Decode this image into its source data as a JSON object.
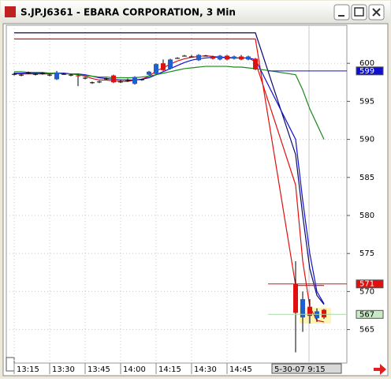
{
  "window": {
    "title": "S.JP.J6361 - EBARA CORPORATION, 3 Min"
  },
  "chart_data": {
    "type": "candlestick",
    "categories": [
      "13:15",
      null,
      null,
      null,
      null,
      "13:30",
      null,
      null,
      null,
      null,
      "13:45",
      null,
      null,
      null,
      null,
      "14:00",
      null,
      null,
      null,
      null,
      "14:15",
      null,
      null,
      null,
      null,
      "14:30",
      null,
      null,
      null,
      null,
      "14:45",
      null,
      null,
      null,
      null,
      "5-30-07  9:15",
      null,
      null,
      null,
      null
    ],
    "open": [
      598.6,
      598.5,
      598.8,
      598.6,
      598.7,
      598.5,
      597.9,
      598.6,
      598.5,
      598.4,
      598.1,
      597.5,
      597.6,
      598.0,
      598.4,
      597.6,
      597.8,
      597.3,
      597.9,
      598.5,
      598.6,
      600.0,
      599.3,
      600.7,
      601.0,
      600.9,
      600.4,
      601.0,
      600.9,
      600.5,
      601.0,
      600.6,
      600.9,
      600.5,
      600.6,
      571.0,
      566.6,
      568.0,
      566.5,
      567.6
    ],
    "high": [
      598.8,
      598.6,
      598.9,
      598.7,
      598.8,
      598.6,
      599.0,
      598.7,
      598.6,
      598.5,
      598.2,
      597.6,
      597.7,
      598.1,
      598.5,
      597.8,
      598.0,
      598.3,
      598.0,
      599.0,
      600.0,
      600.5,
      600.6,
      600.8,
      601.1,
      601.1,
      601.2,
      601.1,
      601.0,
      601.1,
      601.1,
      601.0,
      601.1,
      601.0,
      600.7,
      574.0,
      570.0,
      569.0,
      567.8,
      567.7
    ],
    "low": [
      598.4,
      598.3,
      598.6,
      598.4,
      598.5,
      598.3,
      597.8,
      598.5,
      598.3,
      597.0,
      597.9,
      597.3,
      597.4,
      597.8,
      597.4,
      597.4,
      597.6,
      597.2,
      597.7,
      598.4,
      598.5,
      599.0,
      599.2,
      600.6,
      600.9,
      600.8,
      600.3,
      600.9,
      600.5,
      600.4,
      600.4,
      600.5,
      600.4,
      600.4,
      599.1,
      562.0,
      564.7,
      565.8,
      566.0,
      566.4
    ],
    "close": [
      598.6,
      598.5,
      598.8,
      598.6,
      598.7,
      598.5,
      598.8,
      598.6,
      598.5,
      598.3,
      598.1,
      597.5,
      597.6,
      598.0,
      597.5,
      597.6,
      597.8,
      598.2,
      597.9,
      598.9,
      599.9,
      599.1,
      600.5,
      600.7,
      601.0,
      600.9,
      601.1,
      601.0,
      600.6,
      601.0,
      600.5,
      600.9,
      600.5,
      600.9,
      599.2,
      567.2,
      569.0,
      566.8,
      567.4,
      566.6
    ],
    "up_color": "#1f5fd0",
    "down_color": "#e01010",
    "lines": [
      {
        "color": "#0a0a6a",
        "values": [
          604.0,
          604.0,
          604.0,
          604.0,
          604.0,
          604.0,
          604.0,
          604.0,
          604.0,
          604.0,
          604.0,
          604.0,
          604.0,
          604.0,
          604.0,
          604.0,
          604.0,
          604.0,
          604.0,
          604.0,
          604.0,
          604.0,
          604.0,
          604.0,
          604.0,
          604.0,
          604.0,
          604.0,
          604.0,
          604.0,
          604.0,
          604.0,
          604.0,
          604.0,
          604.0,
          588.0,
          580.0,
          573.0,
          569.5,
          568.3
        ]
      },
      {
        "color": "#e01010",
        "values": [
          603.2,
          603.2,
          603.2,
          603.2,
          603.2,
          603.2,
          603.2,
          603.2,
          603.2,
          603.2,
          603.2,
          603.2,
          603.2,
          603.2,
          603.2,
          603.2,
          603.2,
          603.2,
          603.2,
          603.2,
          603.2,
          603.2,
          603.2,
          603.2,
          603.2,
          603.2,
          603.2,
          603.2,
          603.2,
          603.2,
          603.2,
          603.2,
          603.2,
          603.2,
          603.2,
          570.8,
          570.8,
          570.8,
          570.8,
          570.8
        ]
      },
      {
        "color": "#e01010",
        "values": [
          598.6,
          598.6,
          598.6,
          598.6,
          598.6,
          598.6,
          598.7,
          598.7,
          598.6,
          598.5,
          598.3,
          598.0,
          597.8,
          597.8,
          597.7,
          597.6,
          597.6,
          597.8,
          597.9,
          598.3,
          599.0,
          599.4,
          599.9,
          600.3,
          600.6,
          600.8,
          600.9,
          601.0,
          600.9,
          600.8,
          600.7,
          600.7,
          600.7,
          600.7,
          600.2,
          584.0,
          574.0,
          568.0,
          566.2,
          566.0
        ]
      },
      {
        "color": "#1010d0",
        "values": [
          598.7,
          598.7,
          598.7,
          598.7,
          598.7,
          598.7,
          598.7,
          598.7,
          598.6,
          598.6,
          598.5,
          598.3,
          598.1,
          598.0,
          597.9,
          597.8,
          597.8,
          597.8,
          597.9,
          598.1,
          598.5,
          598.9,
          599.3,
          599.7,
          600.1,
          600.4,
          600.6,
          600.7,
          600.8,
          600.8,
          600.8,
          600.7,
          600.7,
          600.7,
          600.5,
          590.0,
          582.0,
          575.0,
          570.0,
          568.4
        ]
      },
      {
        "color": "#1a8a1a",
        "values": [
          598.9,
          598.9,
          598.8,
          598.8,
          598.8,
          598.7,
          598.7,
          598.6,
          598.6,
          598.5,
          598.4,
          598.3,
          598.2,
          598.2,
          598.1,
          598.1,
          598.1,
          598.1,
          598.2,
          598.3,
          598.5,
          598.7,
          598.9,
          599.1,
          599.3,
          599.4,
          599.5,
          599.6,
          599.6,
          599.6,
          599.6,
          599.5,
          599.5,
          599.4,
          599.3,
          598.5,
          596.5,
          594.0,
          592.0,
          590.0
        ]
      }
    ],
    "markers": [
      {
        "value": 599,
        "color": "#1010d0",
        "text_color": "#ffffff",
        "line_color": "#1010d0"
      },
      {
        "value": 571,
        "color": "#e01010",
        "text_color": "#ffffff",
        "line_color": "#e01010"
      },
      {
        "value": 567,
        "color": "#c8e8c8",
        "text_color": "#000000",
        "line_color": "#a8dca8"
      }
    ],
    "ylim": [
      560.6,
      605.0
    ],
    "yticks": [
      565,
      570,
      575,
      580,
      585,
      590,
      595,
      600
    ],
    "grid": true
  }
}
